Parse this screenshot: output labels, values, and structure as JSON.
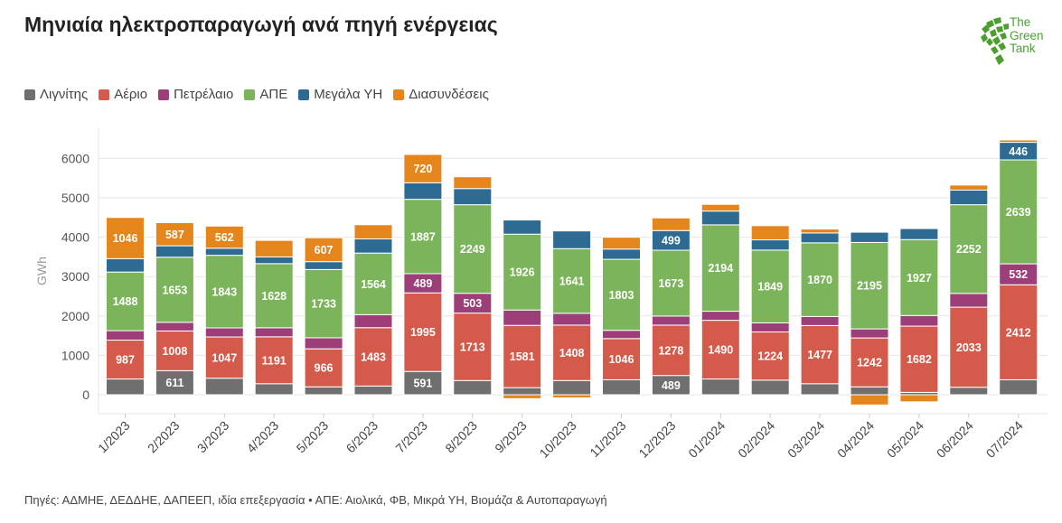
{
  "header": {
    "title": "Μηνιαία ηλεκτροπαραγωγή ανά πηγή ενέργειας",
    "logo_lines": [
      "The",
      "Green",
      "Tank"
    ]
  },
  "colors": {
    "Λιγνίτης": "#6f6f6f",
    "Αέριο": "#d45b4b",
    "Πετρέλαιο": "#9c3f79",
    "ΑΠΕ": "#7bb45a",
    "Μεγάλα ΥΗ": "#2e6b93",
    "Διασυνδέσεις": "#e5861c",
    "brand": "#4a9f2f"
  },
  "footer": {
    "text": "Πηγές: ΑΔΜΗΕ, ΔΕΔΔΗΕ, ΔΑΠΕΕΠ, ιδία επεξεργασία • ΑΠΕ: Αιολικά, ΦΒ, Μικρά ΥΗ, Βιομάζα & Αυτοπαραγωγή"
  },
  "chart_data": {
    "type": "bar",
    "stacked": true,
    "title": "Μηνιαία ηλεκτροπαραγωγή ανά πηγή ενέργειας",
    "xlabel": "",
    "ylabel": "GWh",
    "ylim": [
      -300,
      6600
    ],
    "yticks": [
      0,
      1000,
      2000,
      3000,
      4000,
      5000,
      6000
    ],
    "grid": true,
    "legend": "top-left",
    "categories": [
      "1/2023",
      "2/2023",
      "3/2023",
      "4/2023",
      "5/2023",
      "6/2023",
      "7/2023",
      "8/2023",
      "9/2023",
      "10/2023",
      "11/2023",
      "12/2023",
      "01/2024",
      "02/2024",
      "03/2024",
      "04/2024",
      "05/2024",
      "06/2024",
      "07/2024"
    ],
    "series": [
      {
        "name": "Λιγνίτης",
        "values": [
          400,
          611,
          420,
          280,
          200,
          220,
          591,
          360,
          180,
          360,
          380,
          489,
          400,
          370,
          280,
          200,
          60,
          190,
          380
        ],
        "labels": [
          false,
          true,
          false,
          false,
          false,
          false,
          true,
          false,
          false,
          false,
          false,
          true,
          false,
          false,
          false,
          false,
          false,
          false,
          false
        ]
      },
      {
        "name": "Αέριο",
        "values": [
          987,
          1008,
          1047,
          1191,
          966,
          1483,
          1995,
          1713,
          1581,
          1408,
          1046,
          1278,
          1490,
          1224,
          1477,
          1242,
          1682,
          2033,
          2412
        ],
        "labels": [
          true,
          true,
          true,
          true,
          true,
          true,
          true,
          true,
          true,
          true,
          true,
          true,
          true,
          true,
          true,
          true,
          true,
          true,
          true
        ]
      },
      {
        "name": "Πετρέλαιο",
        "values": [
          240,
          220,
          230,
          230,
          280,
          330,
          489,
          503,
          390,
          300,
          210,
          230,
          230,
          230,
          230,
          230,
          270,
          350,
          532
        ],
        "labels": [
          false,
          false,
          false,
          false,
          false,
          false,
          true,
          true,
          false,
          false,
          false,
          false,
          false,
          false,
          false,
          false,
          false,
          false,
          true
        ]
      },
      {
        "name": "ΑΠΕ",
        "values": [
          1488,
          1653,
          1843,
          1628,
          1733,
          1564,
          1887,
          2249,
          1926,
          1641,
          1803,
          1673,
          2194,
          1849,
          1870,
          2195,
          1927,
          2252,
          2639
        ],
        "labels": [
          true,
          true,
          true,
          true,
          true,
          true,
          true,
          true,
          true,
          true,
          true,
          true,
          true,
          true,
          true,
          true,
          true,
          true,
          true
        ]
      },
      {
        "name": "Μεγάλα ΥΗ",
        "values": [
          340,
          290,
          180,
          170,
          200,
          360,
          420,
          410,
          360,
          450,
          260,
          499,
          350,
          260,
          250,
          260,
          280,
          370,
          446
        ],
        "labels": [
          false,
          false,
          false,
          false,
          false,
          false,
          false,
          false,
          false,
          false,
          false,
          true,
          false,
          false,
          false,
          false,
          false,
          false,
          true
        ]
      },
      {
        "name": "Διασυνδέσεις",
        "values": [
          1046,
          587,
          562,
          420,
          607,
          360,
          720,
          300,
          -100,
          -80,
          300,
          320,
          170,
          360,
          100,
          -260,
          -180,
          130,
          60
        ],
        "labels": [
          true,
          true,
          true,
          false,
          true,
          false,
          true,
          false,
          false,
          false,
          false,
          false,
          false,
          false,
          false,
          false,
          false,
          false,
          false
        ]
      }
    ]
  }
}
